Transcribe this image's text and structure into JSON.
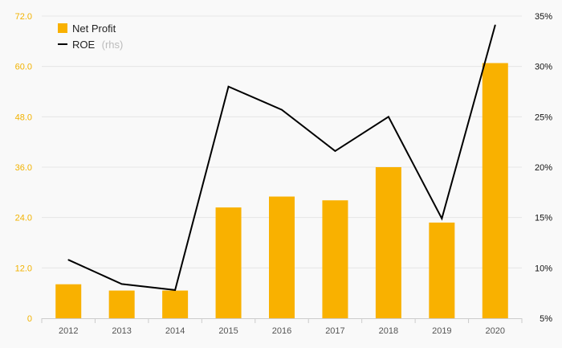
{
  "chart_data": {
    "type": "bar",
    "categories": [
      "2012",
      "2013",
      "2014",
      "2015",
      "2016",
      "2017",
      "2018",
      "2019",
      "2020"
    ],
    "series": [
      {
        "name": "Net Profit",
        "type": "bar",
        "axis": "left",
        "values": [
          8.1,
          6.6,
          6.6,
          26.4,
          29.0,
          28.1,
          36.0,
          22.8,
          60.8
        ]
      },
      {
        "name": "ROE",
        "name_note": "(rhs)",
        "type": "line",
        "axis": "right",
        "values": [
          10.8,
          8.4,
          7.8,
          28.0,
          25.7,
          21.6,
          25.0,
          14.9,
          34.1
        ]
      }
    ],
    "ylim_left": [
      0,
      72
    ],
    "yticks_left": [
      "0",
      "12.0",
      "24.0",
      "36.0",
      "48.0",
      "60.0",
      "72.0"
    ],
    "ylim_right": [
      5,
      35
    ],
    "yticks_right": [
      "5%",
      "10%",
      "15%",
      "20%",
      "25%",
      "30%",
      "35%"
    ],
    "grid": true,
    "legend": "top-left",
    "colors": {
      "bar": "#f9b100",
      "line": "#000000",
      "left_ticks": "#f2b200",
      "grid": "#e6e6e6"
    }
  }
}
